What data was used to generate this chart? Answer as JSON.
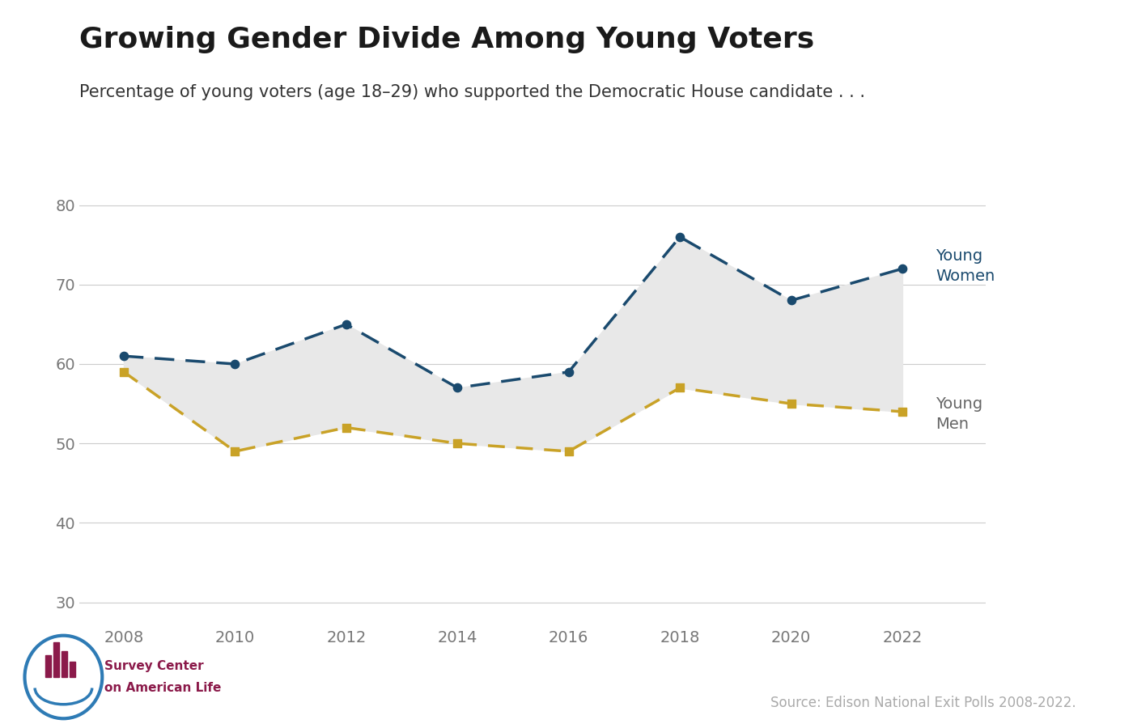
{
  "title": "Growing Gender Divide Among Young Voters",
  "subtitle": "Percentage of young voters (age 18–29) who supported the Democratic House candidate . . .",
  "source": "Source: Edison National Exit Polls 2008-2022.",
  "years": [
    2008,
    2010,
    2012,
    2014,
    2016,
    2018,
    2020,
    2022
  ],
  "women": [
    61,
    60,
    65,
    57,
    59,
    76,
    68,
    72
  ],
  "men": [
    59,
    49,
    52,
    50,
    49,
    57,
    55,
    54
  ],
  "women_color": "#1a4a6e",
  "men_color": "#c9a227",
  "fill_color": "#e8e8e8",
  "background_color": "#ffffff",
  "ylim": [
    27,
    82
  ],
  "yticks": [
    30,
    40,
    50,
    60,
    70,
    80
  ],
  "title_fontsize": 26,
  "subtitle_fontsize": 15,
  "tick_fontsize": 14,
  "label_fontsize": 14,
  "source_fontsize": 12
}
